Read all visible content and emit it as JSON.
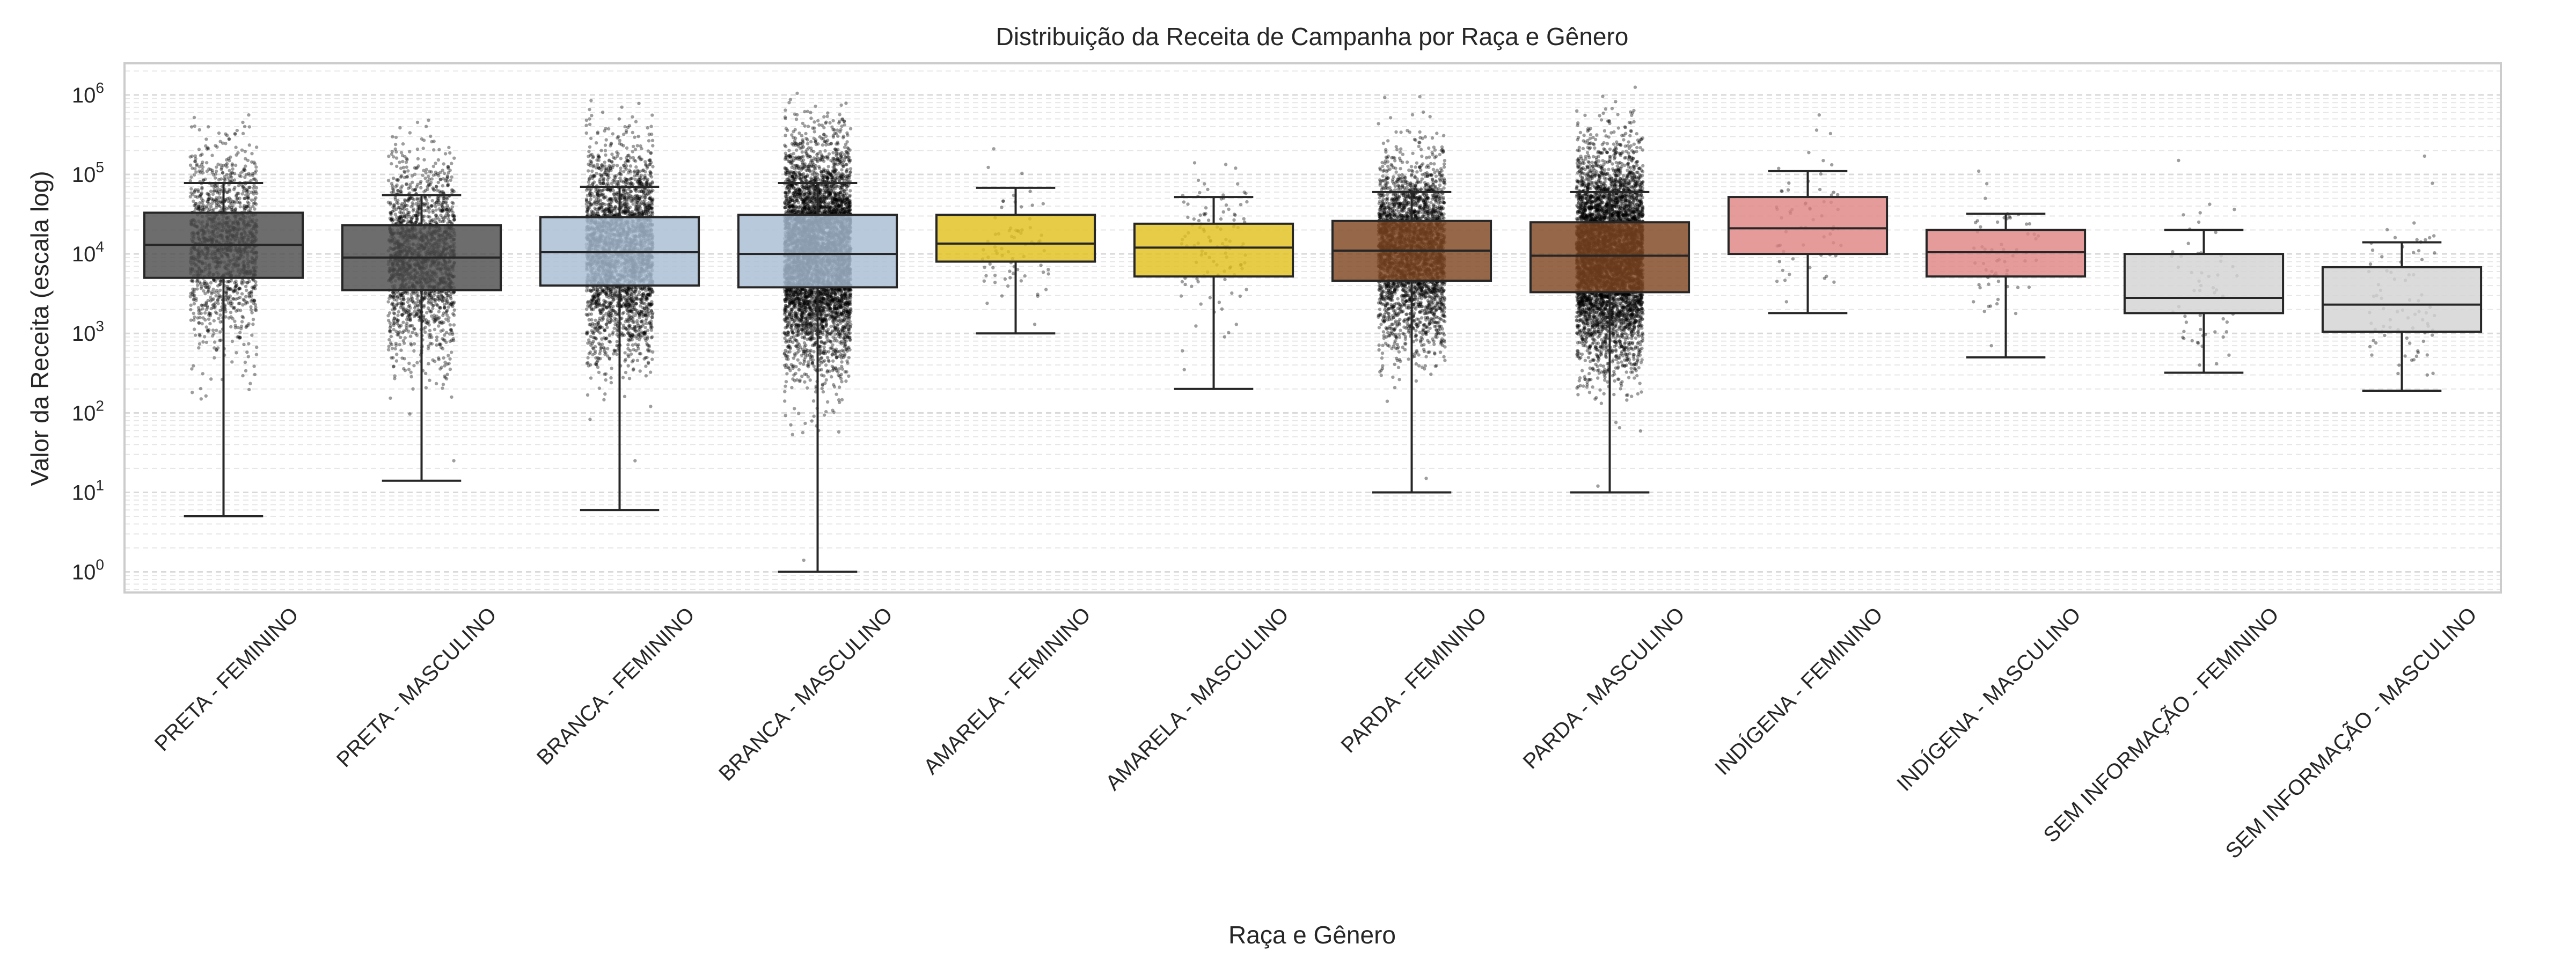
{
  "chart_data": {
    "type": "box",
    "title": "Distribuição da Receita de Campanha por Raça e Gênero",
    "xlabel": "Raça e Gênero",
    "ylabel": "Valor da Receita (escala log)",
    "yscale": "log",
    "ylim": [
      0.55,
      2500000
    ],
    "grid": "y major and minor, dashed",
    "yticks": [
      {
        "base": "10",
        "exp": "0",
        "value": 1
      },
      {
        "base": "10",
        "exp": "1",
        "value": 10
      },
      {
        "base": "10",
        "exp": "2",
        "value": 100
      },
      {
        "base": "10",
        "exp": "3",
        "value": 1000
      },
      {
        "base": "10",
        "exp": "4",
        "value": 10000
      },
      {
        "base": "10",
        "exp": "5",
        "value": 100000
      },
      {
        "base": "10",
        "exp": "6",
        "value": 1000000
      }
    ],
    "categories": [
      "PRETA - FEMININO",
      "PRETA - MASCULINO",
      "BRANCA - FEMININO",
      "BRANCA - MASCULINO",
      "AMARELA - FEMININO",
      "AMARELA - MASCULINO",
      "PARDA - FEMININO",
      "PARDA - MASCULINO",
      "INDÍGENA - FEMININO",
      "INDÍGENA - MASCULINO",
      "SEM INFORMAÇÃO - FEMININO",
      "SEM INFORMAÇÃO - MASCULINO"
    ],
    "boxes": [
      {
        "whislo": 5,
        "q1": 5000,
        "med": 13000,
        "q3": 33000,
        "whishi": 78000,
        "color": "#4d4d4d",
        "points_max": 560000,
        "points_min": 150,
        "density": 1400
      },
      {
        "whislo": 14,
        "q1": 3500,
        "med": 9000,
        "q3": 23000,
        "whishi": 55000,
        "color": "#4d4d4d",
        "points_max": 480000,
        "points_min": 25,
        "density": 1800
      },
      {
        "whislo": 6,
        "q1": 4000,
        "med": 10500,
        "q3": 29000,
        "whishi": 70000,
        "color": "#a8bdd4",
        "points_max": 850000,
        "points_min": 25,
        "density": 3000
      },
      {
        "whislo": 1,
        "q1": 3800,
        "med": 10000,
        "q3": 31000,
        "whishi": 78000,
        "color": "#a8bdd4",
        "points_max": 1050000,
        "points_min": 1.4,
        "density": 5200
      },
      {
        "whislo": 1000,
        "q1": 8000,
        "med": 13500,
        "q3": 31000,
        "whishi": 68000,
        "color": "#e2c11e",
        "points_max": 210000,
        "points_min": 1300,
        "density": 70
      },
      {
        "whislo": 200,
        "q1": 5200,
        "med": 12000,
        "q3": 24000,
        "whishi": 52000,
        "color": "#e2c11e",
        "points_max": 140000,
        "points_min": 350,
        "density": 110
      },
      {
        "whislo": 10,
        "q1": 4600,
        "med": 11000,
        "q3": 26000,
        "whishi": 60000,
        "color": "#7f4520",
        "points_max": 950000,
        "points_min": 15,
        "density": 3000
      },
      {
        "whislo": 10,
        "q1": 3300,
        "med": 9500,
        "q3": 25000,
        "whishi": 60000,
        "color": "#7f4520",
        "points_max": 1250000,
        "points_min": 12,
        "density": 5200
      },
      {
        "whislo": 1800,
        "q1": 10000,
        "med": 21000,
        "q3": 52000,
        "whishi": 110000,
        "color": "#e08585",
        "points_max": 560000,
        "points_min": 2500,
        "density": 60
      },
      {
        "whislo": 500,
        "q1": 5200,
        "med": 10500,
        "q3": 20000,
        "whishi": 32000,
        "color": "#e08585",
        "points_max": 110000,
        "points_min": 700,
        "density": 60
      },
      {
        "whislo": 320,
        "q1": 1800,
        "med": 2800,
        "q3": 10000,
        "whishi": 20000,
        "color": "#d3d3d3",
        "points_max": 150000,
        "points_min": 400,
        "density": 60
      },
      {
        "whislo": 190,
        "q1": 1050,
        "med": 2300,
        "q3": 6800,
        "whishi": 14000,
        "color": "#d3d3d3",
        "points_max": 170000,
        "points_min": 300,
        "density": 80
      }
    ]
  }
}
